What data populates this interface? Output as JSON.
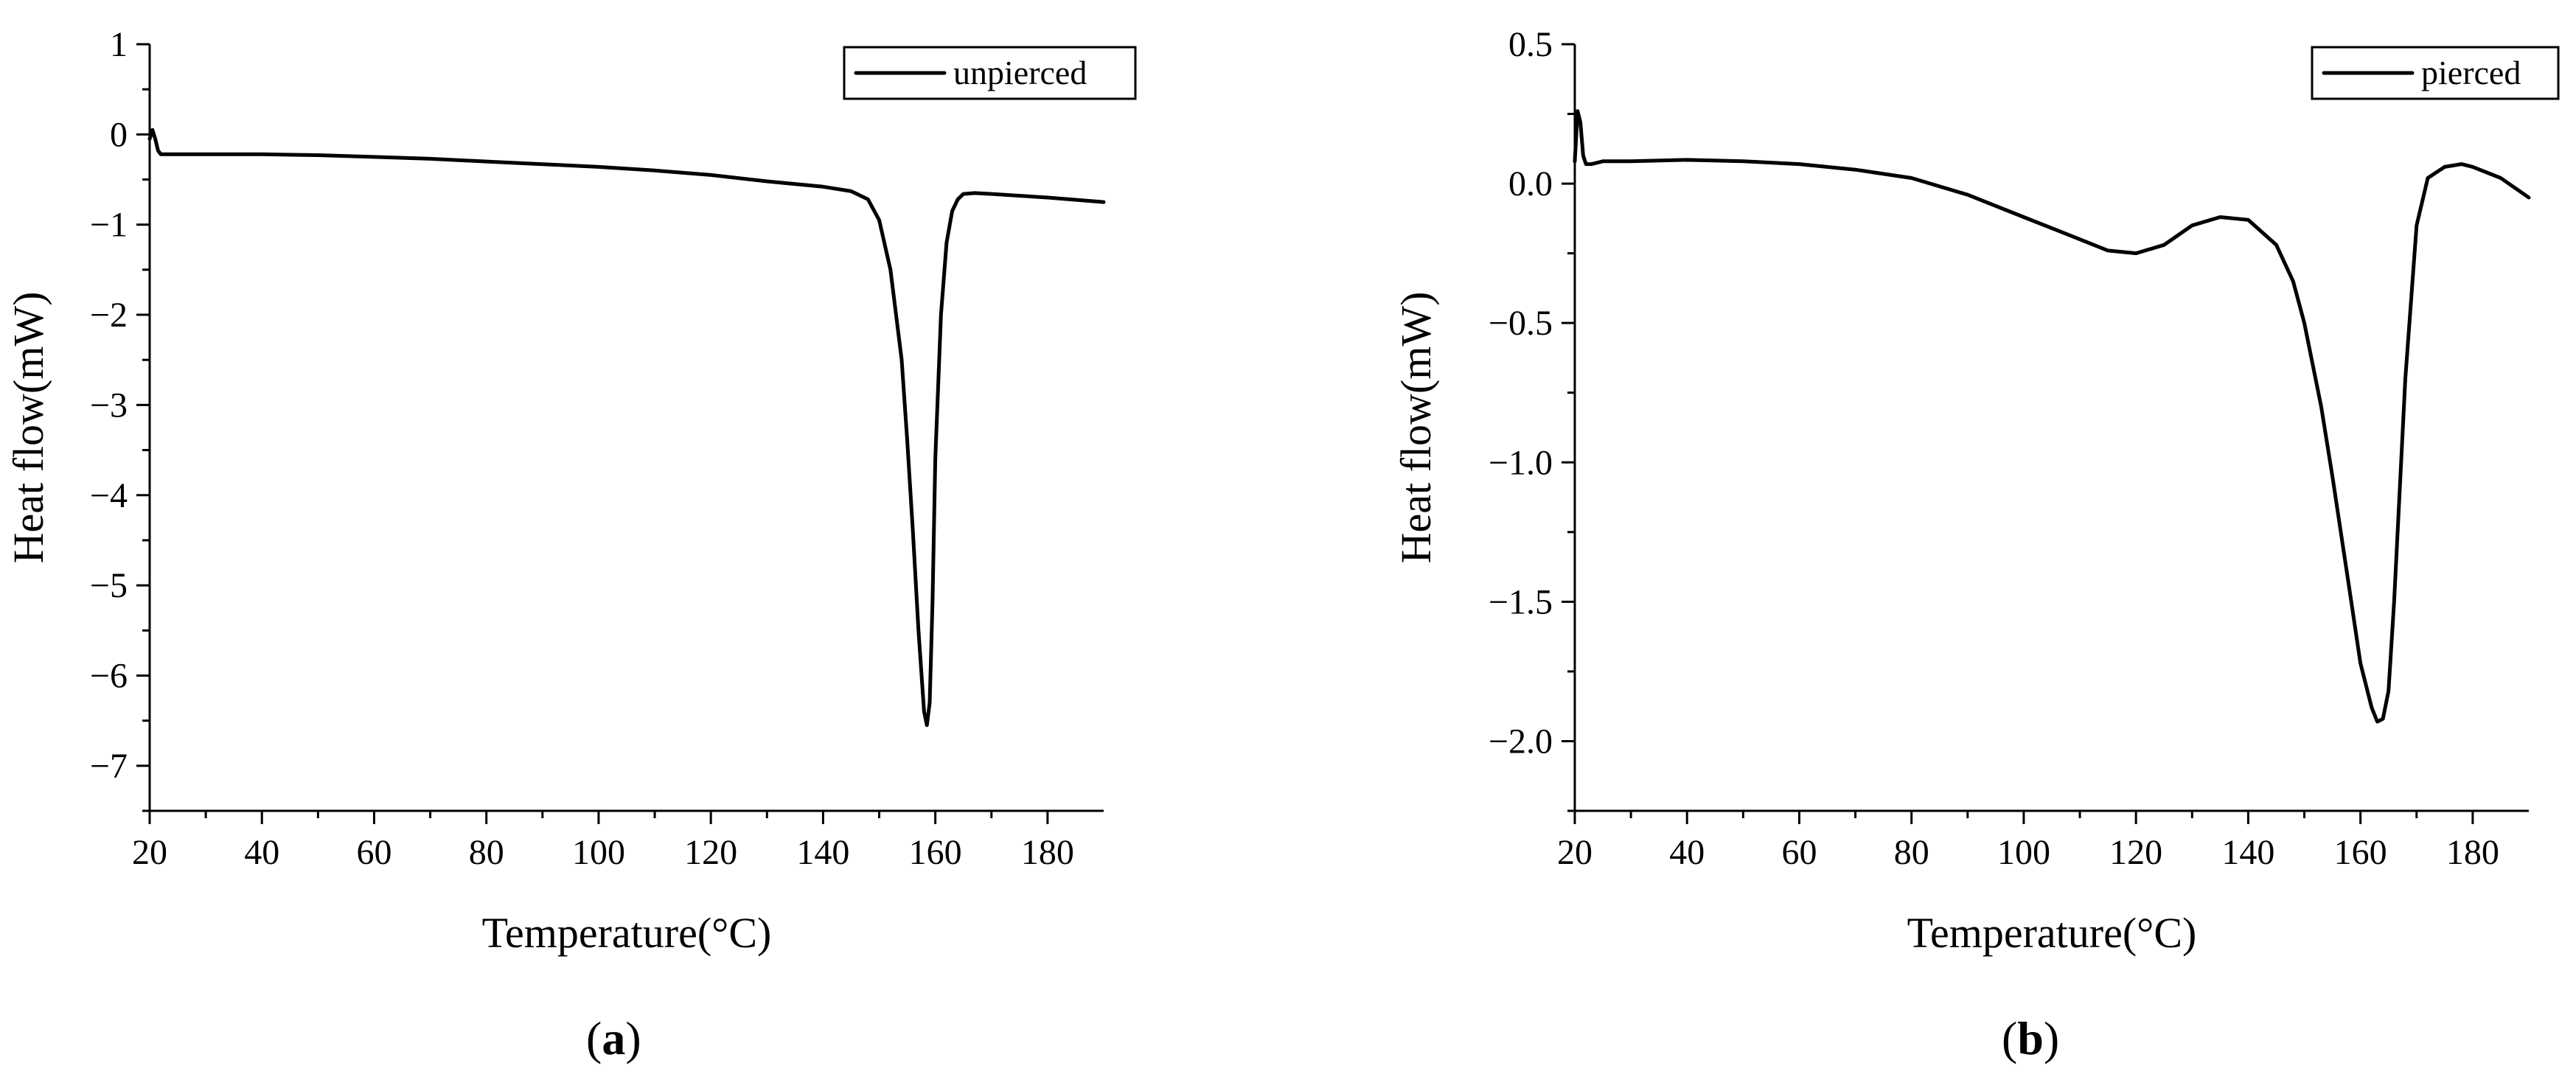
{
  "chart_data": [
    {
      "type": "line",
      "panel_label": "a",
      "xlabel": "Temperature(°C)",
      "ylabel": "Heat flow(mW)",
      "xlim": [
        20,
        190
      ],
      "ylim": [
        -7.5,
        1
      ],
      "xticks": [
        20,
        40,
        60,
        80,
        100,
        120,
        140,
        160,
        180
      ],
      "yticks": [
        1,
        0,
        -1,
        -2,
        -3,
        -4,
        -5,
        -6,
        -7
      ],
      "ytick_labels": [
        "1",
        "0",
        "−1",
        "−2",
        "−3",
        "−4",
        "−5",
        "−6",
        "−7"
      ],
      "xtick_labels": [
        "20",
        "40",
        "60",
        "80",
        "100",
        "120",
        "140",
        "160",
        "180"
      ],
      "legend": "unpierced",
      "legend_position": "top-right",
      "series": [
        {
          "name": "unpierced",
          "x": [
            20,
            20.5,
            21,
            21.5,
            22,
            23,
            30,
            40,
            50,
            60,
            70,
            80,
            90,
            100,
            110,
            120,
            130,
            140,
            145,
            148,
            150,
            152,
            154,
            155,
            156,
            157,
            158,
            158.5,
            159,
            159.5,
            160,
            161,
            162,
            163,
            164,
            165,
            167,
            170,
            180,
            190
          ],
          "y": [
            -0.05,
            0.05,
            -0.05,
            -0.18,
            -0.22,
            -0.22,
            -0.22,
            -0.22,
            -0.23,
            -0.25,
            -0.27,
            -0.3,
            -0.33,
            -0.36,
            -0.4,
            -0.45,
            -0.52,
            -0.58,
            -0.63,
            -0.72,
            -0.95,
            -1.5,
            -2.5,
            -3.4,
            -4.4,
            -5.5,
            -6.4,
            -6.55,
            -6.3,
            -5.2,
            -3.6,
            -2.0,
            -1.2,
            -0.85,
            -0.72,
            -0.66,
            -0.65,
            -0.66,
            -0.7,
            -0.75
          ]
        }
      ]
    },
    {
      "type": "line",
      "panel_label": "b",
      "xlabel": "Temperature(°C)",
      "ylabel": "Heat flow(mW)",
      "xlim": [
        20,
        190
      ],
      "ylim": [
        -2.25,
        0.5
      ],
      "xticks": [
        20,
        40,
        60,
        80,
        100,
        120,
        140,
        160,
        180
      ],
      "yticks": [
        0.5,
        0.0,
        -0.5,
        -1.0,
        -1.5,
        -2.0
      ],
      "ytick_labels": [
        "0.5",
        "0.0",
        "−0.5",
        "−1.0",
        "−1.5",
        "−2.0"
      ],
      "xtick_labels": [
        "20",
        "40",
        "60",
        "80",
        "100",
        "120",
        "140",
        "160",
        "180"
      ],
      "legend": "pierced",
      "legend_position": "top-right",
      "series": [
        {
          "name": "pierced",
          "x": [
            20,
            20.5,
            21,
            21.5,
            22,
            23,
            25,
            30,
            40,
            50,
            60,
            70,
            80,
            90,
            100,
            110,
            115,
            120,
            125,
            130,
            135,
            140,
            145,
            148,
            150,
            153,
            155,
            158,
            160,
            162,
            163,
            164,
            165,
            166,
            168,
            170,
            172,
            175,
            178,
            180,
            185,
            190
          ],
          "y": [
            0.08,
            0.26,
            0.22,
            0.1,
            0.07,
            0.07,
            0.08,
            0.08,
            0.085,
            0.08,
            0.07,
            0.05,
            0.02,
            -0.04,
            -0.12,
            -0.2,
            -0.24,
            -0.25,
            -0.22,
            -0.15,
            -0.12,
            -0.13,
            -0.22,
            -0.35,
            -0.5,
            -0.8,
            -1.05,
            -1.45,
            -1.72,
            -1.88,
            -1.93,
            -1.92,
            -1.82,
            -1.5,
            -0.7,
            -0.15,
            0.02,
            0.06,
            0.07,
            0.06,
            0.02,
            -0.05
          ]
        }
      ]
    }
  ]
}
